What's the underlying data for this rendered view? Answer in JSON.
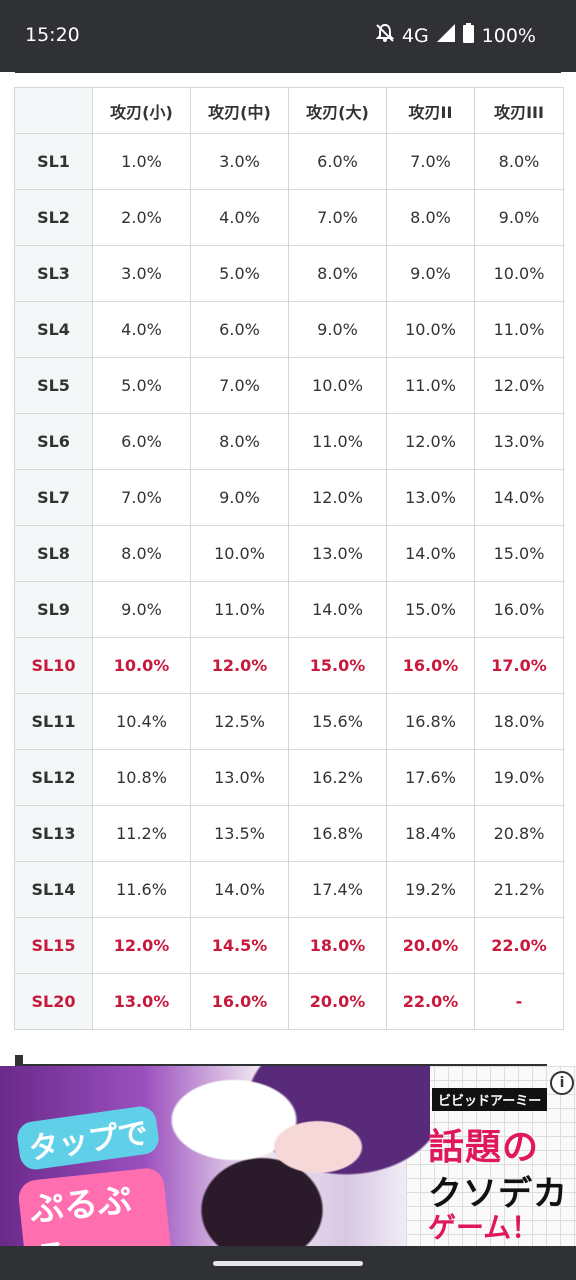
{
  "status": {
    "time": "15:20",
    "network": "4G",
    "battery": "100%"
  },
  "table": {
    "headers": [
      "",
      "攻刃(小)",
      "攻刃(中)",
      "攻刃(大)",
      "攻刃II",
      "攻刃III"
    ],
    "rows": [
      {
        "label": "SL1",
        "values": [
          "1.0%",
          "3.0%",
          "6.0%",
          "7.0%",
          "8.0%"
        ],
        "highlight": false
      },
      {
        "label": "SL2",
        "values": [
          "2.0%",
          "4.0%",
          "7.0%",
          "8.0%",
          "9.0%"
        ],
        "highlight": false
      },
      {
        "label": "SL3",
        "values": [
          "3.0%",
          "5.0%",
          "8.0%",
          "9.0%",
          "10.0%"
        ],
        "highlight": false
      },
      {
        "label": "SL4",
        "values": [
          "4.0%",
          "6.0%",
          "9.0%",
          "10.0%",
          "11.0%"
        ],
        "highlight": false
      },
      {
        "label": "SL5",
        "values": [
          "5.0%",
          "7.0%",
          "10.0%",
          "11.0%",
          "12.0%"
        ],
        "highlight": false
      },
      {
        "label": "SL6",
        "values": [
          "6.0%",
          "8.0%",
          "11.0%",
          "12.0%",
          "13.0%"
        ],
        "highlight": false
      },
      {
        "label": "SL7",
        "values": [
          "7.0%",
          "9.0%",
          "12.0%",
          "13.0%",
          "14.0%"
        ],
        "highlight": false
      },
      {
        "label": "SL8",
        "values": [
          "8.0%",
          "10.0%",
          "13.0%",
          "14.0%",
          "15.0%"
        ],
        "highlight": false
      },
      {
        "label": "SL9",
        "values": [
          "9.0%",
          "11.0%",
          "14.0%",
          "15.0%",
          "16.0%"
        ],
        "highlight": false
      },
      {
        "label": "SL10",
        "values": [
          "10.0%",
          "12.0%",
          "15.0%",
          "16.0%",
          "17.0%"
        ],
        "highlight": true
      },
      {
        "label": "SL11",
        "values": [
          "10.4%",
          "12.5%",
          "15.6%",
          "16.8%",
          "18.0%"
        ],
        "highlight": false
      },
      {
        "label": "SL12",
        "values": [
          "10.8%",
          "13.0%",
          "16.2%",
          "17.6%",
          "19.0%"
        ],
        "highlight": false
      },
      {
        "label": "SL13",
        "values": [
          "11.2%",
          "13.5%",
          "16.8%",
          "18.4%",
          "20.8%"
        ],
        "highlight": false
      },
      {
        "label": "SL14",
        "values": [
          "11.6%",
          "14.0%",
          "17.4%",
          "19.2%",
          "21.2%"
        ],
        "highlight": false
      },
      {
        "label": "SL15",
        "values": [
          "12.0%",
          "14.5%",
          "18.0%",
          "20.0%",
          "22.0%"
        ],
        "highlight": true
      },
      {
        "label": "SL20",
        "values": [
          "13.0%",
          "16.0%",
          "20.0%",
          "22.0%",
          "-"
        ],
        "highlight": true
      }
    ]
  },
  "colors": {
    "highlight": "#c8193c",
    "row_header_bg": "#f3f7f7",
    "status_bar": "#303134"
  },
  "ad": {
    "tap_line1": "タップで",
    "tap_line2": "ぷるぷる",
    "brand": "ビビッドアーミー",
    "headline1": "話題の",
    "headline2": "クソデカ",
    "headline3": "ゲーム！",
    "info": "i"
  }
}
